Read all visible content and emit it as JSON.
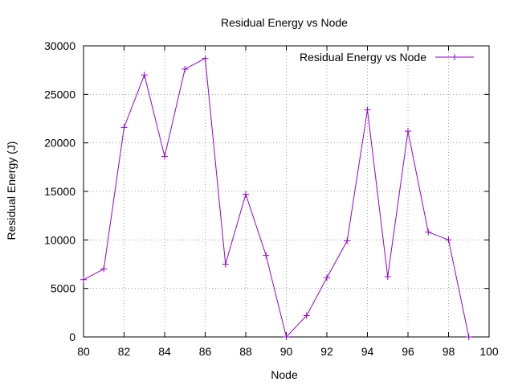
{
  "chart_data": {
    "type": "line",
    "title": "Residual Energy vs Node",
    "xlabel": "Node",
    "ylabel": "Residual Energy (J)",
    "xlim": [
      80,
      100
    ],
    "ylim": [
      0,
      30000
    ],
    "xticks": [
      80,
      82,
      84,
      86,
      88,
      90,
      92,
      94,
      96,
      98,
      100
    ],
    "yticks": [
      0,
      5000,
      10000,
      15000,
      20000,
      25000,
      30000
    ],
    "grid": true,
    "legend_position": "top-right",
    "series": [
      {
        "name": "Residual Energy vs Node",
        "color": "#9400d3",
        "marker": "plus",
        "x": [
          80,
          81,
          82,
          83,
          84,
          85,
          86,
          87,
          88,
          89,
          90,
          91,
          92,
          93,
          94,
          95,
          96,
          97,
          98,
          99
        ],
        "y": [
          5900,
          7000,
          21600,
          27000,
          18600,
          27600,
          28700,
          7500,
          14700,
          8400,
          0,
          2200,
          6100,
          9900,
          23400,
          6200,
          21200,
          10800,
          10000,
          0
        ]
      }
    ]
  }
}
